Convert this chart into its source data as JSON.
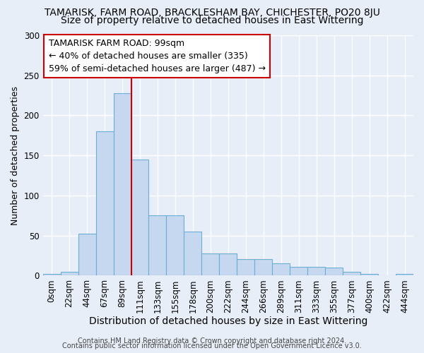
{
  "title": "TAMARISK, FARM ROAD, BRACKLESHAM BAY, CHICHESTER, PO20 8JU",
  "subtitle": "Size of property relative to detached houses in East Wittering",
  "xlabel": "Distribution of detached houses by size in East Wittering",
  "ylabel": "Number of detached properties",
  "bar_values": [
    2,
    5,
    52,
    180,
    228,
    145,
    75,
    75,
    55,
    28,
    28,
    21,
    21,
    15,
    11,
    11,
    10,
    5,
    2,
    0,
    2
  ],
  "bar_labels": [
    "0sqm",
    "22sqm",
    "44sqm",
    "67sqm",
    "89sqm",
    "111sqm",
    "133sqm",
    "155sqm",
    "178sqm",
    "200sqm",
    "222sqm",
    "244sqm",
    "266sqm",
    "289sqm",
    "311sqm",
    "333sqm",
    "355sqm",
    "377sqm",
    "400sqm",
    "422sqm",
    "444sqm"
  ],
  "bar_color": "#c5d8ef",
  "bar_edge_color": "#6baed6",
  "vline_pos": 4.5,
  "vline_color": "#cc0000",
  "annotation_title": "TAMARISK FARM ROAD: 99sqm",
  "annotation_line1": "← 40% of detached houses are smaller (335)",
  "annotation_line2": "59% of semi-detached houses are larger (487) →",
  "annotation_box_color": "#ffffff",
  "annotation_box_edge": "#cc0000",
  "ylim": [
    0,
    300
  ],
  "yticks": [
    0,
    50,
    100,
    150,
    200,
    250,
    300
  ],
  "footer1": "Contains HM Land Registry data © Crown copyright and database right 2024.",
  "footer2": "Contains public sector information licensed under the Open Government Licence v3.0.",
  "bg_color": "#e8eef8",
  "plot_bg_color": "#e8eef8",
  "grid_color": "#ffffff",
  "title_fontsize": 10,
  "subtitle_fontsize": 10,
  "xlabel_fontsize": 10,
  "ylabel_fontsize": 9,
  "tick_fontsize": 8.5,
  "annotation_fontsize": 9,
  "footer_fontsize": 7
}
